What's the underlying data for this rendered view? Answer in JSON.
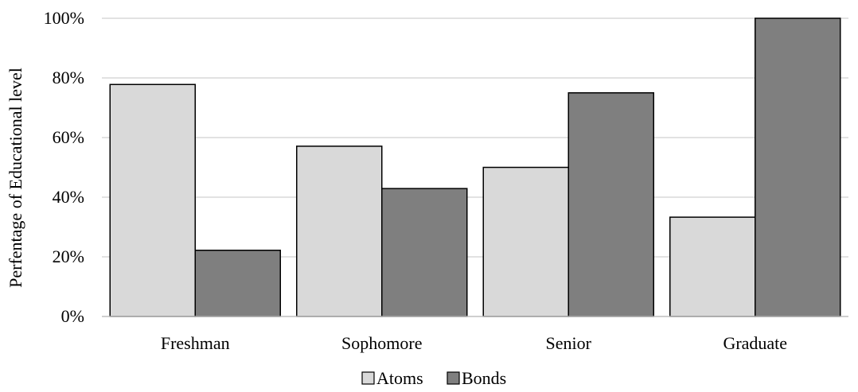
{
  "chart_data": {
    "type": "bar",
    "title": "",
    "xlabel": "",
    "ylabel": "Perfentage of Educational level",
    "categories": [
      "Freshman",
      "Sophomore",
      "Senior",
      "Graduate"
    ],
    "series": [
      {
        "name": "Atoms",
        "color": "#d9d9d9",
        "values": [
          77.8,
          57.1,
          50.0,
          33.3
        ]
      },
      {
        "name": "Bonds",
        "color": "#7f7f7f",
        "values": [
          22.2,
          42.9,
          75.0,
          100.0
        ]
      }
    ],
    "ylim": [
      0,
      100
    ],
    "yticks": [
      "0%",
      "20%",
      "40%",
      "60%",
      "80%",
      "100%"
    ],
    "grid": true,
    "legend_position": "bottom"
  }
}
